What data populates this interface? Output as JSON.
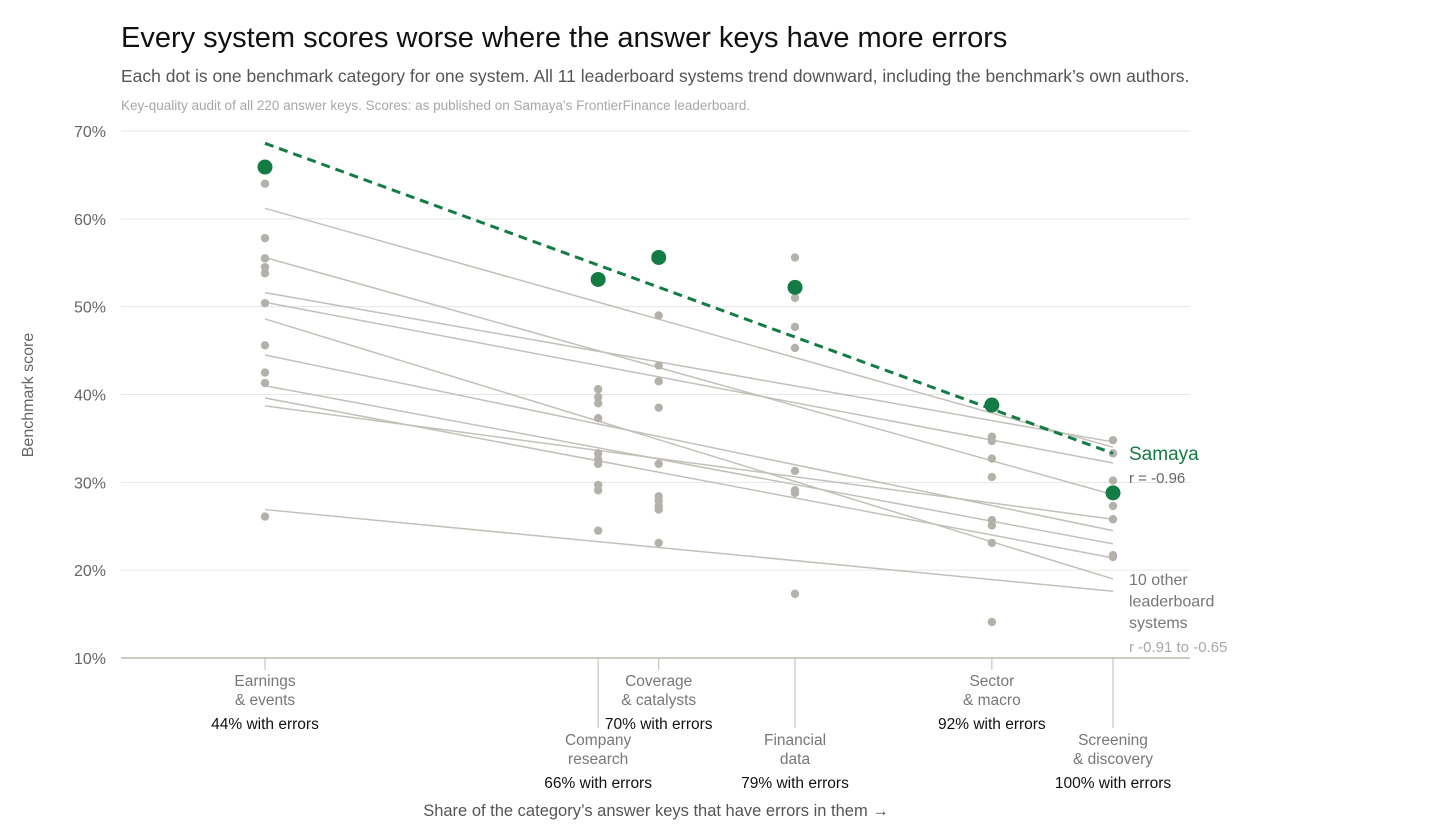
{
  "title": "Every system scores worse where the answer keys have more errors",
  "subtitle": "Each dot is one benchmark category for one system. All 11 leaderboard systems trend downward, including the benchmark’s own authors.",
  "note": "Key-quality audit of all 220 answer keys. Scores: as published on Samaya's FrontierFinance leaderboard.",
  "colors": {
    "highlight": "#127c44",
    "other": "#b4b1aa",
    "other_line": "#c3c0b9",
    "grid": "#e6e6e6",
    "axis": "#bdbab2"
  },
  "chart_data": {
    "type": "scatter",
    "xlabel": "Share of the category’s answer keys that have errors in them →",
    "ylabel": "Benchmark score",
    "ylim": [
      10,
      70
    ],
    "xlim": [
      44,
      100
    ],
    "yticks": [
      10,
      20,
      30,
      40,
      50,
      60,
      70
    ],
    "ytick_labels": [
      "10%",
      "20%",
      "30%",
      "40%",
      "50%",
      "60%",
      "70%"
    ],
    "grid": true,
    "categories": [
      {
        "name_lines": [
          "Earnings",
          "& events"
        ],
        "x": 44,
        "error_label": "44% with errors",
        "label_row": "upper"
      },
      {
        "name_lines": [
          "Company",
          "research"
        ],
        "x": 66,
        "error_label": "66% with errors",
        "label_row": "lower"
      },
      {
        "name_lines": [
          "Coverage",
          "& catalysts"
        ],
        "x": 70,
        "error_label": "70% with errors",
        "label_row": "upper"
      },
      {
        "name_lines": [
          "Financial",
          "data"
        ],
        "x": 79,
        "error_label": "79% with errors",
        "label_row": "lower"
      },
      {
        "name_lines": [
          "Sector",
          "& macro"
        ],
        "x": 92,
        "error_label": "92% with errors",
        "label_row": "upper"
      },
      {
        "name_lines": [
          "Screening",
          "& discovery"
        ],
        "x": 100,
        "error_label": "100% with errors",
        "label_row": "lower"
      }
    ],
    "highlight_series": {
      "name": "Samaya",
      "r_label": "r = -0.96",
      "points": [
        [
          44,
          65.9
        ],
        [
          66,
          53.1
        ],
        [
          70,
          55.6
        ],
        [
          79,
          52.2
        ],
        [
          92,
          38.8
        ],
        [
          100,
          28.8
        ]
      ],
      "trend": [
        [
          44,
          68.6
        ],
        [
          100,
          33.3
        ]
      ]
    },
    "other_series": {
      "label_lines": [
        "10 other",
        "leaderboard",
        "systems"
      ],
      "r_label": "r -0.91 to -0.65",
      "points": [
        [
          44,
          64.0
        ],
        [
          44,
          57.8
        ],
        [
          44,
          55.5
        ],
        [
          44,
          54.5
        ],
        [
          44,
          53.8
        ],
        [
          44,
          50.4
        ],
        [
          44,
          45.6
        ],
        [
          44,
          42.5
        ],
        [
          44,
          41.3
        ],
        [
          44,
          26.1
        ],
        [
          66,
          40.6
        ],
        [
          66,
          39.7
        ],
        [
          66,
          39.0
        ],
        [
          66,
          37.3
        ],
        [
          66,
          33.3
        ],
        [
          66,
          32.6
        ],
        [
          66,
          32.1
        ],
        [
          66,
          29.7
        ],
        [
          66,
          29.1
        ],
        [
          66,
          24.5
        ],
        [
          70,
          49.0
        ],
        [
          70,
          43.3
        ],
        [
          70,
          41.5
        ],
        [
          70,
          38.5
        ],
        [
          70,
          32.1
        ],
        [
          70,
          28.4
        ],
        [
          70,
          27.9
        ],
        [
          70,
          27.3
        ],
        [
          70,
          26.9
        ],
        [
          70,
          23.1
        ],
        [
          79,
          55.6
        ],
        [
          79,
          51.0
        ],
        [
          79,
          47.7
        ],
        [
          79,
          45.3
        ],
        [
          79,
          31.3
        ],
        [
          79,
          29.1
        ],
        [
          79,
          28.8
        ],
        [
          79,
          17.3
        ],
        [
          92,
          35.2
        ],
        [
          92,
          34.7
        ],
        [
          92,
          32.7
        ],
        [
          92,
          30.6
        ],
        [
          92,
          25.7
        ],
        [
          92,
          25.1
        ],
        [
          92,
          23.1
        ],
        [
          92,
          14.1
        ],
        [
          100,
          34.8
        ],
        [
          100,
          33.3
        ],
        [
          100,
          30.2
        ],
        [
          100,
          28.6
        ],
        [
          100,
          27.3
        ],
        [
          100,
          25.8
        ],
        [
          100,
          21.7
        ],
        [
          100,
          21.5
        ]
      ],
      "trends": [
        [
          [
            44,
            61.2
          ],
          [
            100,
            34.0
          ]
        ],
        [
          [
            44,
            55.6
          ],
          [
            100,
            28.6
          ]
        ],
        [
          [
            44,
            51.6
          ],
          [
            100,
            34.6
          ]
        ],
        [
          [
            44,
            50.5
          ],
          [
            100,
            32.2
          ]
        ],
        [
          [
            44,
            48.6
          ],
          [
            100,
            19.0
          ]
        ],
        [
          [
            44,
            44.5
          ],
          [
            100,
            24.5
          ]
        ],
        [
          [
            44,
            41.0
          ],
          [
            100,
            23.0
          ]
        ],
        [
          [
            44,
            39.6
          ],
          [
            100,
            21.4
          ]
        ],
        [
          [
            44,
            38.7
          ],
          [
            100,
            25.8
          ]
        ],
        [
          [
            44,
            26.9
          ],
          [
            100,
            17.6
          ]
        ]
      ]
    }
  }
}
